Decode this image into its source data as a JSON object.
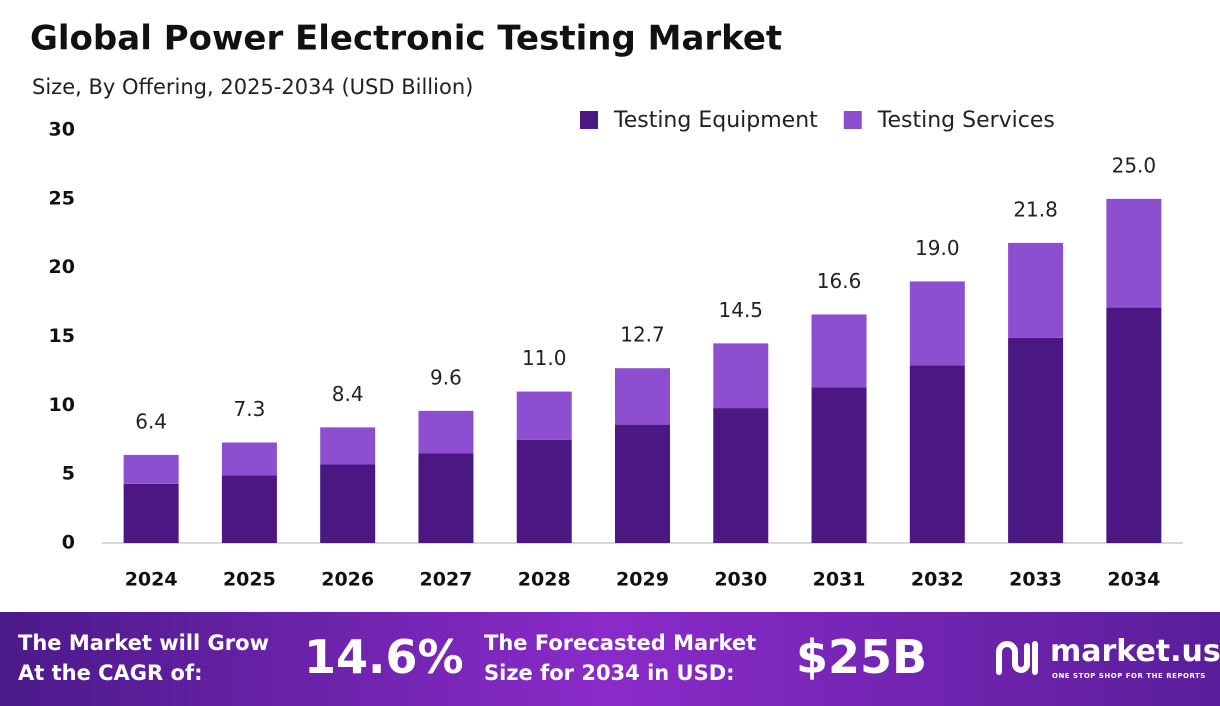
{
  "chart_data": {
    "type": "stacked-bar",
    "title": "Global Power Electronic Testing Market",
    "subtitle": "Size, By Offering, 2025-2034 (USD Billion)",
    "categories": [
      "2024",
      "2025",
      "2026",
      "2027",
      "2028",
      "2029",
      "2030",
      "2031",
      "2032",
      "2033",
      "2034"
    ],
    "series": [
      {
        "name": "Testing Equipment",
        "color": "#4a1783",
        "values": [
          4.3,
          4.9,
          5.7,
          6.5,
          7.5,
          8.6,
          9.8,
          11.3,
          12.9,
          14.9,
          17.1
        ]
      },
      {
        "name": "Testing Services",
        "color": "#8d4fcf",
        "values": [
          2.1,
          2.4,
          2.7,
          3.1,
          3.5,
          4.1,
          4.7,
          5.3,
          6.1,
          6.9,
          7.9
        ]
      }
    ],
    "totals": [
      6.4,
      7.3,
      8.4,
      9.6,
      11.0,
      12.7,
      14.5,
      16.6,
      19.0,
      21.8,
      25.0
    ],
    "total_labels": [
      "6.4",
      "7.3",
      "8.4",
      "9.6",
      "11.0",
      "12.7",
      "14.5",
      "16.6",
      "19.0",
      "21.8",
      "25.0"
    ],
    "ylim": [
      0,
      30
    ],
    "yticks": [
      0,
      5,
      10,
      15,
      20,
      25,
      30
    ],
    "legend": "top-right"
  },
  "footer": {
    "cagr_text": "The Market will Grow At the CAGR of:",
    "cagr_value": "14.6%",
    "size_text": "The Forecasted Market Size for 2034 in USD:",
    "size_value": "$25B",
    "brand": "market.us",
    "tagline": "ONE STOP SHOP FOR THE REPORTS"
  }
}
